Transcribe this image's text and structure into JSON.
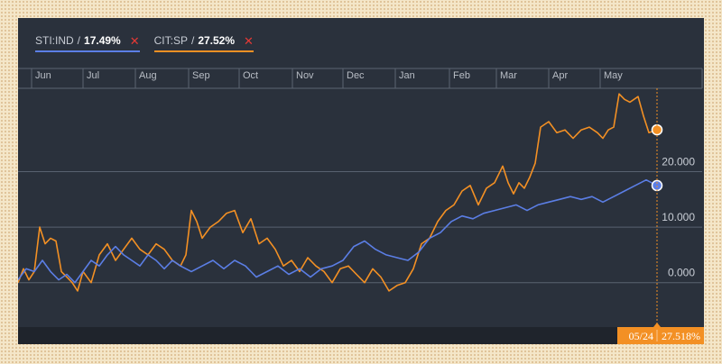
{
  "legend": [
    {
      "ticker": "STI:IND",
      "sep": " / ",
      "pct": "17.49%",
      "remove": "✕",
      "color": "#5b7ee5"
    },
    {
      "ticker": "CIT:SP",
      "sep": " / ",
      "pct": "27.52%",
      "remove": "✕",
      "color": "#f39024"
    }
  ],
  "tooltip": {
    "date": "05/24",
    "value": "27.518%"
  },
  "colors": {
    "background": "#2a313c",
    "grid": "#596270",
    "sti": "#5b7ee5",
    "cit": "#f39024",
    "tooltip_bg": "#f39024"
  },
  "chart_data": {
    "type": "line",
    "title": "",
    "xlabel": "",
    "ylabel": "",
    "grid": true,
    "legend_position": "top-left",
    "x_axis_labels": [
      "Jun",
      "Jul",
      "Aug",
      "Sep",
      "Oct",
      "Nov",
      "Dec",
      "Jan",
      "Feb",
      "Mar",
      "Apr",
      "May"
    ],
    "y_ticks": [
      0,
      10,
      20
    ],
    "y_tick_labels": [
      "0.000",
      "10.000",
      "20.000"
    ],
    "ylim": [
      -8,
      35
    ],
    "x_range_months": [
      0,
      12.2
    ],
    "crosshair": {
      "label": "05/24",
      "x_month": 11.8
    },
    "series": [
      {
        "name": "STI:IND",
        "final_value_pct": 17.49,
        "x_month": [
          0,
          0.15,
          0.3,
          0.45,
          0.6,
          0.75,
          0.9,
          1.05,
          1.2,
          1.35,
          1.5,
          1.65,
          1.8,
          1.95,
          2.1,
          2.25,
          2.4,
          2.55,
          2.7,
          2.85,
          3.0,
          3.2,
          3.4,
          3.6,
          3.8,
          4.0,
          4.2,
          4.4,
          4.6,
          4.8,
          5.0,
          5.2,
          5.4,
          5.6,
          5.8,
          6.0,
          6.2,
          6.4,
          6.6,
          6.8,
          7.0,
          7.2,
          7.4,
          7.6,
          7.8,
          8.0,
          8.2,
          8.4,
          8.6,
          8.8,
          9.0,
          9.2,
          9.4,
          9.6,
          9.8,
          10.0,
          10.2,
          10.4,
          10.6,
          10.8,
          11.0,
          11.2,
          11.4,
          11.6,
          11.8
        ],
        "values": [
          0.5,
          2.5,
          2,
          4,
          2,
          0.5,
          1.5,
          0,
          2,
          4,
          3,
          5,
          6.5,
          5,
          4,
          3,
          5,
          4,
          2.5,
          4,
          3,
          2,
          3,
          4,
          2.5,
          4,
          3,
          1,
          2,
          3,
          1.5,
          2.5,
          1,
          2.5,
          3,
          4,
          6.5,
          7.5,
          6,
          5,
          4.5,
          4,
          5.5,
          8,
          9,
          11,
          12,
          11.5,
          12.5,
          13,
          13.5,
          14,
          13,
          14,
          14.5,
          15,
          15.5,
          15,
          15.5,
          14.5,
          15.5,
          16.5,
          17.5,
          18.5,
          17.49
        ]
      },
      {
        "name": "CIT:SP",
        "final_value_pct": 27.52,
        "x_month": [
          0,
          0.1,
          0.2,
          0.3,
          0.4,
          0.5,
          0.6,
          0.7,
          0.8,
          0.9,
          1.0,
          1.1,
          1.2,
          1.35,
          1.5,
          1.65,
          1.8,
          1.95,
          2.1,
          2.25,
          2.4,
          2.55,
          2.7,
          2.85,
          3.0,
          3.1,
          3.2,
          3.3,
          3.4,
          3.55,
          3.7,
          3.85,
          4.0,
          4.15,
          4.3,
          4.45,
          4.6,
          4.75,
          4.9,
          5.05,
          5.2,
          5.35,
          5.5,
          5.65,
          5.8,
          5.95,
          6.1,
          6.25,
          6.4,
          6.55,
          6.7,
          6.85,
          7.0,
          7.15,
          7.3,
          7.45,
          7.6,
          7.75,
          7.9,
          8.05,
          8.2,
          8.35,
          8.5,
          8.65,
          8.8,
          8.95,
          9.05,
          9.15,
          9.25,
          9.35,
          9.45,
          9.55,
          9.65,
          9.8,
          9.95,
          10.1,
          10.25,
          10.4,
          10.55,
          10.7,
          10.8,
          10.9,
          11.0,
          11.1,
          11.2,
          11.3,
          11.45,
          11.55,
          11.65,
          11.8
        ],
        "values": [
          0,
          2.5,
          0.5,
          2,
          10,
          7,
          8,
          7.5,
          2,
          1,
          0,
          -1.5,
          2,
          0,
          5,
          7,
          4,
          6,
          8,
          6,
          5,
          7,
          6,
          4,
          3,
          5,
          13,
          11,
          8,
          10,
          11,
          12.5,
          13,
          9,
          11.5,
          7,
          8,
          6,
          3,
          4,
          2,
          4.5,
          3,
          2,
          0,
          2.5,
          3,
          1.5,
          0,
          2.5,
          1,
          -1.5,
          -0.5,
          0,
          2.5,
          7,
          8,
          11,
          13,
          14,
          16.5,
          17.5,
          14,
          17,
          18,
          21,
          18,
          16,
          18,
          17,
          19,
          21.5,
          28,
          29,
          27,
          27.5,
          26,
          27.5,
          28,
          27,
          26,
          27.5,
          28,
          34,
          33,
          32.5,
          33.5,
          30,
          27,
          27.52
        ]
      }
    ]
  }
}
